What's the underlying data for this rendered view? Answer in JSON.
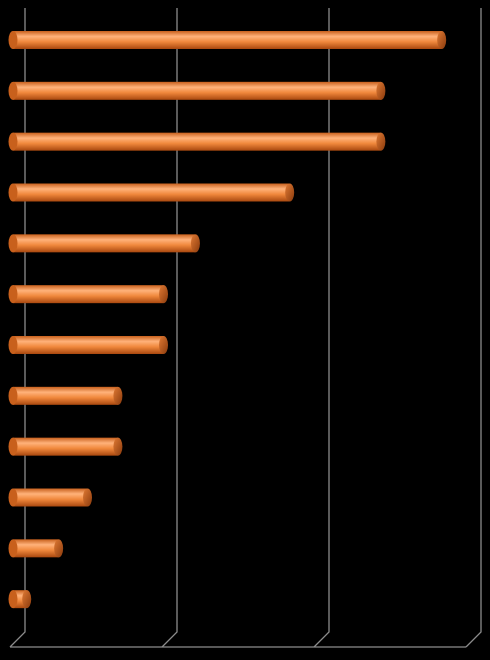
{
  "chart_data": {
    "type": "bar",
    "orientation": "horizontal",
    "categories": [
      null,
      null,
      null,
      null,
      null,
      null,
      null,
      null,
      null,
      null,
      null,
      null
    ],
    "values": [
      28.4,
      24.4,
      24.4,
      18.4,
      12.2,
      10.1,
      10.1,
      7.1,
      7.1,
      5.1,
      3.2,
      1.1
    ],
    "color": "#f0883c",
    "xlim": [
      0,
      30
    ],
    "xticks": [
      0,
      10,
      20,
      30
    ],
    "grid": true
  }
}
